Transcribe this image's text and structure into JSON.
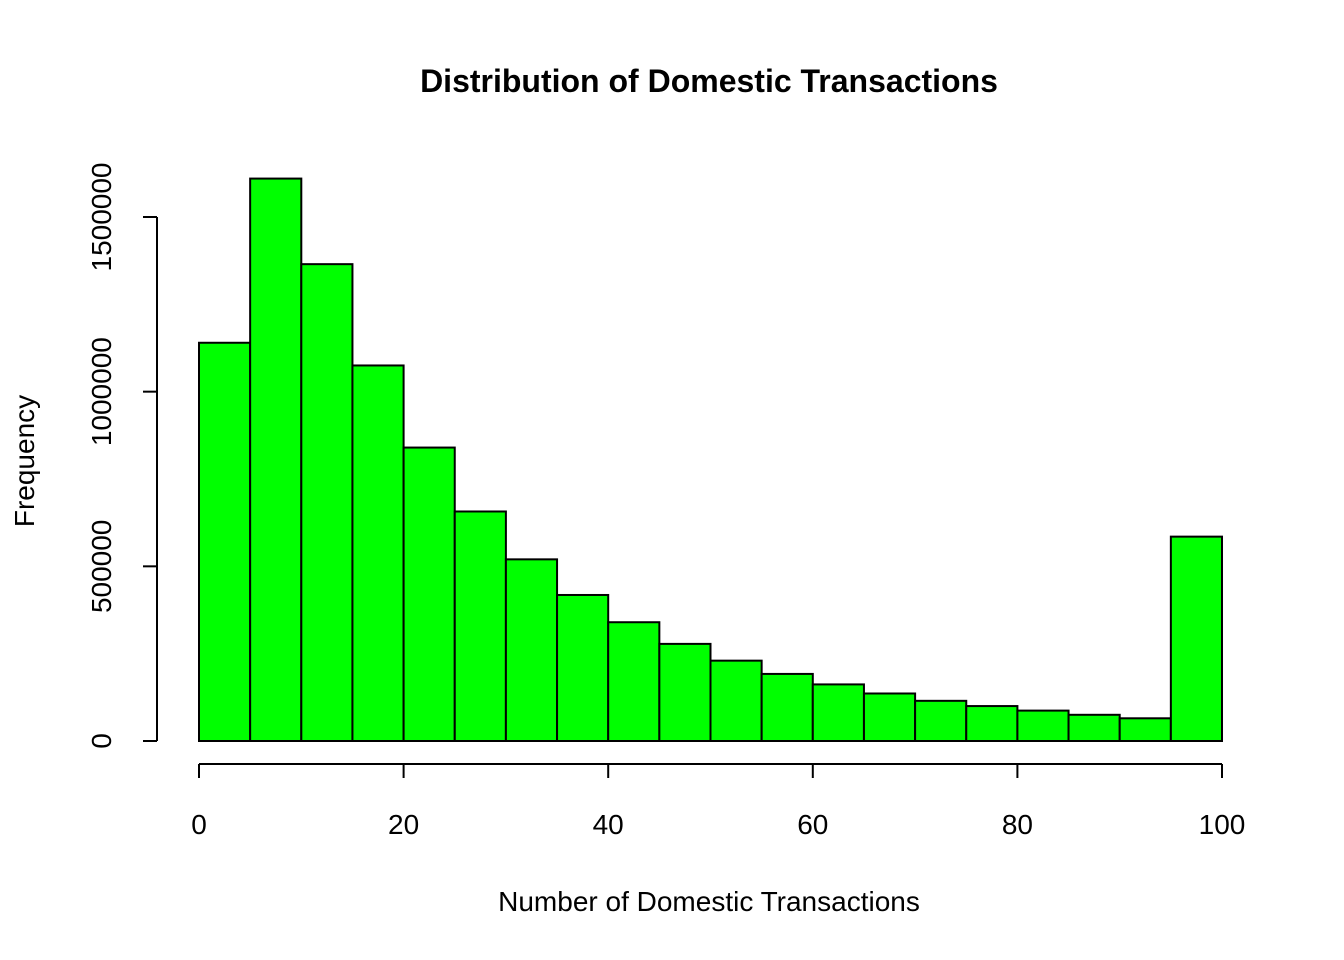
{
  "chart_data": {
    "type": "bar",
    "title": "Distribution of Domestic Transactions",
    "xlabel": "Number of Domestic Transactions",
    "ylabel": "Frequency",
    "bar_color": "#00ff00",
    "border_color": "#000000",
    "bin_edges": [
      0,
      5,
      10,
      15,
      20,
      25,
      30,
      35,
      40,
      45,
      50,
      55,
      60,
      65,
      70,
      75,
      80,
      85,
      90,
      95,
      100
    ],
    "values": [
      1140000,
      1610000,
      1365000,
      1075000,
      840000,
      657000,
      520000,
      418000,
      340000,
      278000,
      230000,
      192000,
      162000,
      136000,
      115000,
      100000,
      87000,
      75000,
      65000,
      585000
    ],
    "xlim": [
      0,
      100
    ],
    "ylim": [
      0,
      1610000
    ],
    "x_ticks": [
      0,
      20,
      40,
      60,
      80,
      100
    ],
    "x_tick_labels": [
      "0",
      "20",
      "40",
      "60",
      "80",
      "100"
    ],
    "y_ticks": [
      0,
      500000,
      1000000,
      1500000
    ],
    "y_tick_labels": [
      "0",
      "500000",
      "1000000",
      "1500000"
    ],
    "grid": false,
    "legend": false
  }
}
